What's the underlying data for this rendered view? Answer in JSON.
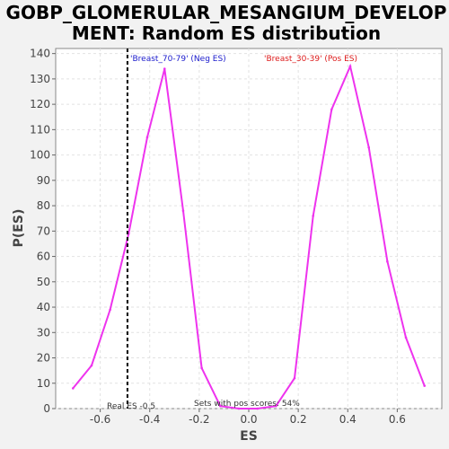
{
  "chart_data": {
    "type": "line",
    "title_lines": [
      "GOBP_GLOMERULAR_MESANGIUM_DEVELOP",
      "MENT: Random ES distribution"
    ],
    "xlabel": "ES",
    "ylabel": "P(ES)",
    "xlim": [
      -0.78,
      0.78
    ],
    "ylim": [
      0,
      142
    ],
    "x_ticks": [
      -0.6,
      -0.4,
      -0.2,
      0.0,
      0.2,
      0.4,
      0.6
    ],
    "x_tick_labels": [
      "-0.6",
      "-0.4",
      "-0.2",
      "0.0",
      "0.2",
      "0.4",
      "0.6"
    ],
    "y_ticks": [
      0,
      10,
      20,
      30,
      40,
      50,
      60,
      70,
      80,
      90,
      100,
      110,
      120,
      130,
      140
    ],
    "y_tick_labels": [
      "0",
      "10",
      "20",
      "30",
      "40",
      "50",
      "60",
      "70",
      "80",
      "90",
      "100",
      "110",
      "120",
      "130",
      "140"
    ],
    "grid": true,
    "series": [
      {
        "color": "#ee33ee",
        "x": [
          -0.71,
          -0.635,
          -0.56,
          -0.485,
          -0.41,
          -0.34,
          -0.265,
          -0.19,
          -0.115,
          -0.04,
          0.035,
          0.11,
          0.185,
          0.26,
          0.335,
          0.41,
          0.485,
          0.56,
          0.635,
          0.71
        ],
        "y": [
          8,
          17,
          39,
          69,
          107,
          134,
          78,
          16,
          1,
          0,
          0,
          1,
          12,
          76,
          118,
          135,
          103,
          58,
          28,
          9
        ]
      }
    ],
    "real_es": -0.49,
    "real_es_label": "Real ES -0.5",
    "pos_scores_note": "Sets with pos scores: 54%",
    "legend": [
      {
        "label": "'Breast_70-79' (Neg ES)",
        "color": "#1a1acc"
      },
      {
        "label": "'Breast_30-39' (Pos ES)",
        "color": "#dd1a1a"
      }
    ]
  }
}
